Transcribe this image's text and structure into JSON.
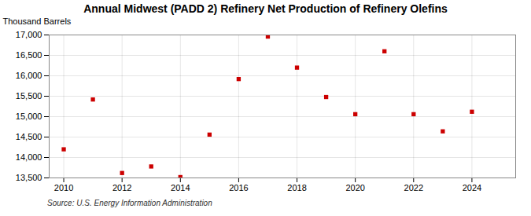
{
  "chart_data": {
    "type": "scatter",
    "title": "Annual Midwest (PADD 2) Refinery Net Production of Refinery Olefins",
    "ylabel": "Thousand Barrels",
    "source": "Source: U.S. Energy Information Administration",
    "x": [
      2010,
      2011,
      2012,
      2013,
      2014,
      2015,
      2016,
      2017,
      2018,
      2019,
      2020,
      2021,
      2022,
      2023,
      2024
    ],
    "values": [
      14200,
      15420,
      13620,
      13780,
      13520,
      14560,
      15920,
      16960,
      16200,
      15480,
      15060,
      16600,
      15060,
      14640,
      15120
    ],
    "color": "#cc0000",
    "marker": "square",
    "xlim": [
      2009.5,
      2025.5
    ],
    "xticks": [
      2010,
      2012,
      2014,
      2016,
      2018,
      2020,
      2022,
      2024
    ],
    "ylim": [
      13500,
      17000
    ],
    "yticks": [
      {
        "value": 13500,
        "label": "13,500"
      },
      {
        "value": 14000,
        "label": "14,000"
      },
      {
        "value": 14500,
        "label": "14,500"
      },
      {
        "value": 15000,
        "label": "15,000"
      },
      {
        "value": 15500,
        "label": "15,500"
      },
      {
        "value": 16000,
        "label": "16,000"
      },
      {
        "value": 16500,
        "label": "16,500"
      },
      {
        "value": 17000,
        "label": "17,000"
      }
    ],
    "grid": true
  }
}
